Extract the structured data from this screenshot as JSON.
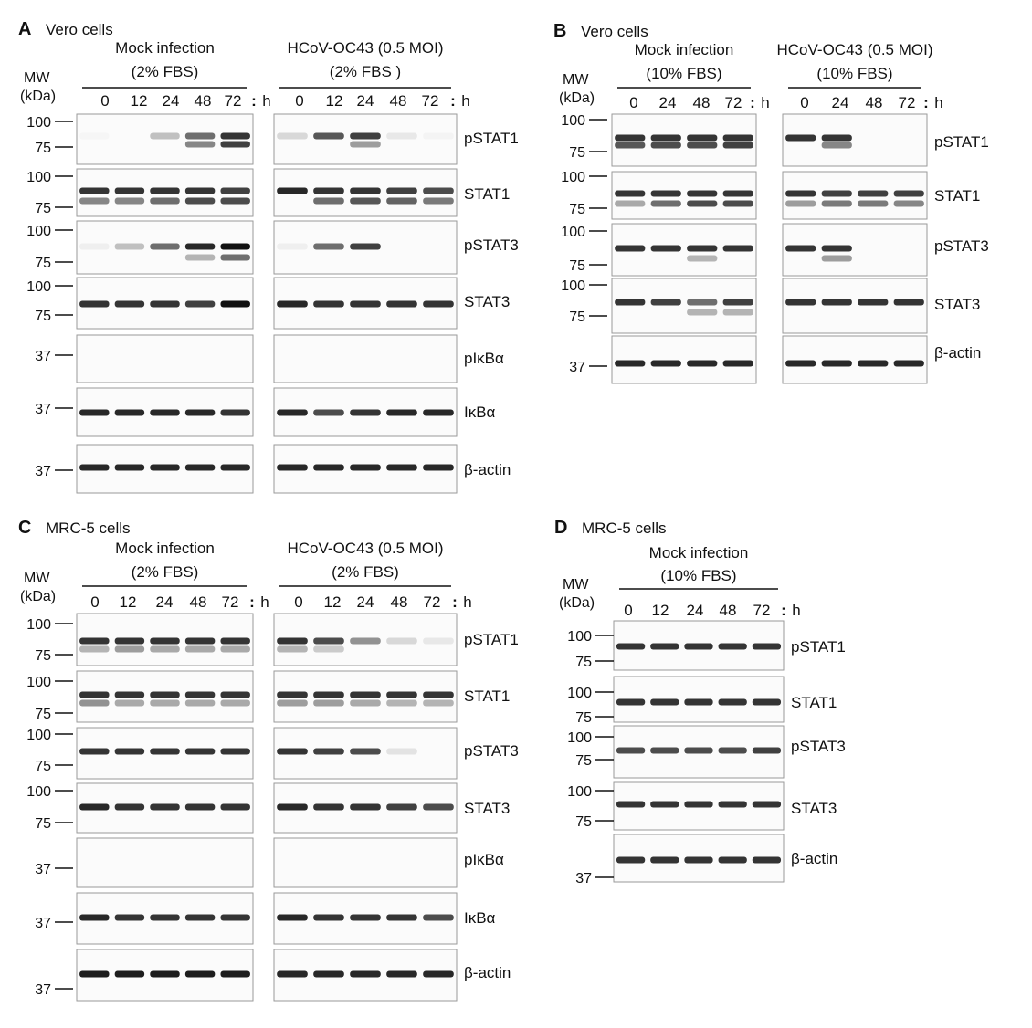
{
  "figure": {
    "mw_label": [
      "MW",
      "(kDa)"
    ],
    "h_label": "h",
    "panels": [
      {
        "letter": "A",
        "cell_line": "Vero cells",
        "groups": [
          {
            "title": [
              "Mock infection",
              "(2% FBS)"
            ],
            "lanes": [
              "0",
              "12",
              "24",
              "48",
              "72"
            ],
            "blots": [
              {
                "target": "pSTAT1",
                "bands": [
                  [
                    0.02,
                    0,
                    0.25,
                    0.6,
                    0.85
                  ],
                  [
                    0,
                    0,
                    0,
                    0.5,
                    0.8
                  ]
                ]
              },
              {
                "target": "STAT1",
                "bands": [
                  [
                    0.85,
                    0.85,
                    0.85,
                    0.85,
                    0.8
                  ],
                  [
                    0.5,
                    0.5,
                    0.6,
                    0.75,
                    0.75
                  ]
                ]
              },
              {
                "target": "pSTAT3",
                "bands": [
                  [
                    0.05,
                    0.25,
                    0.6,
                    0.9,
                    1.0
                  ],
                  [
                    0,
                    0,
                    0,
                    0.3,
                    0.6
                  ]
                ]
              },
              {
                "target": "STAT3",
                "bands": [
                  [
                    0.85,
                    0.85,
                    0.85,
                    0.8,
                    1.0
                  ]
                ]
              },
              {
                "target": "pIκBα",
                "bands": []
              },
              {
                "target": "IκBα",
                "bands": [
                  [
                    0.9,
                    0.9,
                    0.9,
                    0.9,
                    0.85
                  ]
                ]
              },
              {
                "target": "β-actin",
                "bands": [
                  [
                    0.9,
                    0.9,
                    0.9,
                    0.9,
                    0.9
                  ]
                ]
              }
            ]
          },
          {
            "title": [
              "HCoV-OC43 (0.5 MOI)",
              "(2% FBS )"
            ],
            "lanes": [
              "0",
              "12",
              "24",
              "48",
              "72"
            ],
            "blots": [
              {
                "target": "pSTAT1",
                "bands": [
                  [
                    0.15,
                    0.7,
                    0.8,
                    0.08,
                    0.03
                  ],
                  [
                    0,
                    0,
                    0.4,
                    0,
                    0
                  ]
                ]
              },
              {
                "target": "STAT1",
                "bands": [
                  [
                    0.9,
                    0.85,
                    0.85,
                    0.8,
                    0.75
                  ],
                  [
                    0,
                    0.6,
                    0.7,
                    0.65,
                    0.55
                  ]
                ]
              },
              {
                "target": "pSTAT3",
                "bands": [
                  [
                    0.05,
                    0.6,
                    0.8,
                    0,
                    0
                  ]
                ]
              },
              {
                "target": "STAT3",
                "bands": [
                  [
                    0.9,
                    0.85,
                    0.85,
                    0.85,
                    0.85
                  ]
                ]
              },
              {
                "target": "pIκBα",
                "bands": []
              },
              {
                "target": "IκBα",
                "bands": [
                  [
                    0.9,
                    0.75,
                    0.85,
                    0.9,
                    0.9
                  ]
                ]
              },
              {
                "target": "β-actin",
                "bands": [
                  [
                    0.9,
                    0.9,
                    0.9,
                    0.9,
                    0.9
                  ]
                ]
              }
            ]
          }
        ]
      },
      {
        "letter": "B",
        "cell_line": "Vero cells",
        "groups": [
          {
            "title": [
              "Mock infection",
              "(10% FBS)"
            ],
            "lanes": [
              "0",
              "24",
              "48",
              "72"
            ],
            "blots": [
              {
                "target": "pSTAT1",
                "bands": [
                  [
                    0.85,
                    0.85,
                    0.85,
                    0.85
                  ],
                  [
                    0.7,
                    0.75,
                    0.75,
                    0.8
                  ]
                ]
              },
              {
                "target": "STAT1",
                "bands": [
                  [
                    0.85,
                    0.85,
                    0.85,
                    0.85
                  ],
                  [
                    0.35,
                    0.6,
                    0.75,
                    0.75
                  ]
                ]
              },
              {
                "target": "pSTAT3",
                "bands": [
                  [
                    0.85,
                    0.85,
                    0.85,
                    0.85
                  ],
                  [
                    0,
                    0,
                    0.3,
                    0
                  ]
                ]
              },
              {
                "target": "STAT3",
                "bands": [
                  [
                    0.85,
                    0.8,
                    0.6,
                    0.8
                  ],
                  [
                    0,
                    0,
                    0.3,
                    0.3
                  ]
                ]
              },
              {
                "target": "β-actin",
                "bands": [
                  [
                    0.9,
                    0.9,
                    0.9,
                    0.9
                  ]
                ]
              }
            ]
          },
          {
            "title": [
              "HCoV-OC43 (0.5 MOI)",
              "(10% FBS)"
            ],
            "lanes": [
              "0",
              "24",
              "48",
              "72"
            ],
            "blots": [
              {
                "target": "pSTAT1",
                "bands": [
                  [
                    0.85,
                    0.85,
                    0,
                    0
                  ],
                  [
                    0,
                    0.5,
                    0,
                    0
                  ]
                ]
              },
              {
                "target": "STAT1",
                "bands": [
                  [
                    0.85,
                    0.8,
                    0.8,
                    0.8
                  ],
                  [
                    0.4,
                    0.55,
                    0.55,
                    0.5
                  ]
                ]
              },
              {
                "target": "pSTAT3",
                "bands": [
                  [
                    0.85,
                    0.85,
                    0,
                    0
                  ],
                  [
                    0,
                    0.4,
                    0,
                    0
                  ]
                ]
              },
              {
                "target": "STAT3",
                "bands": [
                  [
                    0.85,
                    0.85,
                    0.85,
                    0.85
                  ]
                ]
              },
              {
                "target": "β-actin",
                "bands": [
                  [
                    0.9,
                    0.9,
                    0.9,
                    0.9
                  ]
                ]
              }
            ]
          }
        ]
      },
      {
        "letter": "C",
        "cell_line": "MRC-5 cells",
        "groups": [
          {
            "title": [
              "Mock infection",
              "(2% FBS)"
            ],
            "lanes": [
              "0",
              "12",
              "24",
              "48",
              "72"
            ],
            "blots": [
              {
                "target": "pSTAT1",
                "bands": [
                  [
                    0.85,
                    0.85,
                    0.85,
                    0.85,
                    0.85
                  ],
                  [
                    0.3,
                    0.4,
                    0.35,
                    0.35,
                    0.35
                  ]
                ]
              },
              {
                "target": "STAT1",
                "bands": [
                  [
                    0.85,
                    0.85,
                    0.85,
                    0.85,
                    0.85
                  ],
                  [
                    0.45,
                    0.35,
                    0.35,
                    0.35,
                    0.35
                  ]
                ]
              },
              {
                "target": "pSTAT3",
                "bands": [
                  [
                    0.85,
                    0.85,
                    0.85,
                    0.85,
                    0.85
                  ]
                ]
              },
              {
                "target": "STAT3",
                "bands": [
                  [
                    0.9,
                    0.85,
                    0.85,
                    0.85,
                    0.85
                  ]
                ]
              },
              {
                "target": "pIκBα",
                "bands": []
              },
              {
                "target": "IκBα",
                "bands": [
                  [
                    0.9,
                    0.85,
                    0.85,
                    0.85,
                    0.85
                  ]
                ]
              },
              {
                "target": "β-actin",
                "bands": [
                  [
                    0.95,
                    0.95,
                    0.95,
                    0.95,
                    0.95
                  ]
                ]
              }
            ]
          },
          {
            "title": [
              "HCoV-OC43 (0.5 MOI)",
              "(2% FBS)"
            ],
            "lanes": [
              "0",
              "12",
              "24",
              "48",
              "72"
            ],
            "blots": [
              {
                "target": "pSTAT1",
                "bands": [
                  [
                    0.85,
                    0.75,
                    0.45,
                    0.15,
                    0.08
                  ],
                  [
                    0.3,
                    0.2,
                    0,
                    0,
                    0
                  ]
                ]
              },
              {
                "target": "STAT1",
                "bands": [
                  [
                    0.85,
                    0.85,
                    0.85,
                    0.85,
                    0.85
                  ],
                  [
                    0.4,
                    0.4,
                    0.35,
                    0.3,
                    0.3
                  ]
                ]
              },
              {
                "target": "pSTAT3",
                "bands": [
                  [
                    0.85,
                    0.8,
                    0.75,
                    0.1,
                    0
                  ]
                ]
              },
              {
                "target": "STAT3",
                "bands": [
                  [
                    0.9,
                    0.85,
                    0.85,
                    0.8,
                    0.75
                  ]
                ]
              },
              {
                "target": "pIκBα",
                "bands": []
              },
              {
                "target": "IκBα",
                "bands": [
                  [
                    0.9,
                    0.85,
                    0.85,
                    0.85,
                    0.75
                  ]
                ]
              },
              {
                "target": "β-actin",
                "bands": [
                  [
                    0.9,
                    0.9,
                    0.9,
                    0.9,
                    0.9
                  ]
                ]
              }
            ]
          }
        ]
      },
      {
        "letter": "D",
        "cell_line": "MRC-5 cells",
        "groups": [
          {
            "title": [
              "Mock infection",
              "(10% FBS)"
            ],
            "lanes": [
              "0",
              "12",
              "24",
              "48",
              "72"
            ],
            "blots": [
              {
                "target": "pSTAT1",
                "bands": [
                  [
                    0.85,
                    0.85,
                    0.85,
                    0.85,
                    0.85
                  ]
                ]
              },
              {
                "target": "STAT1",
                "bands": [
                  [
                    0.85,
                    0.85,
                    0.85,
                    0.85,
                    0.85
                  ]
                ]
              },
              {
                "target": "pSTAT3",
                "bands": [
                  [
                    0.75,
                    0.75,
                    0.75,
                    0.75,
                    0.8
                  ]
                ]
              },
              {
                "target": "STAT3",
                "bands": [
                  [
                    0.85,
                    0.85,
                    0.85,
                    0.85,
                    0.85
                  ]
                ]
              },
              {
                "target": "β-actin",
                "bands": [
                  [
                    0.85,
                    0.85,
                    0.85,
                    0.85,
                    0.85
                  ]
                ]
              }
            ]
          }
        ]
      }
    ]
  }
}
